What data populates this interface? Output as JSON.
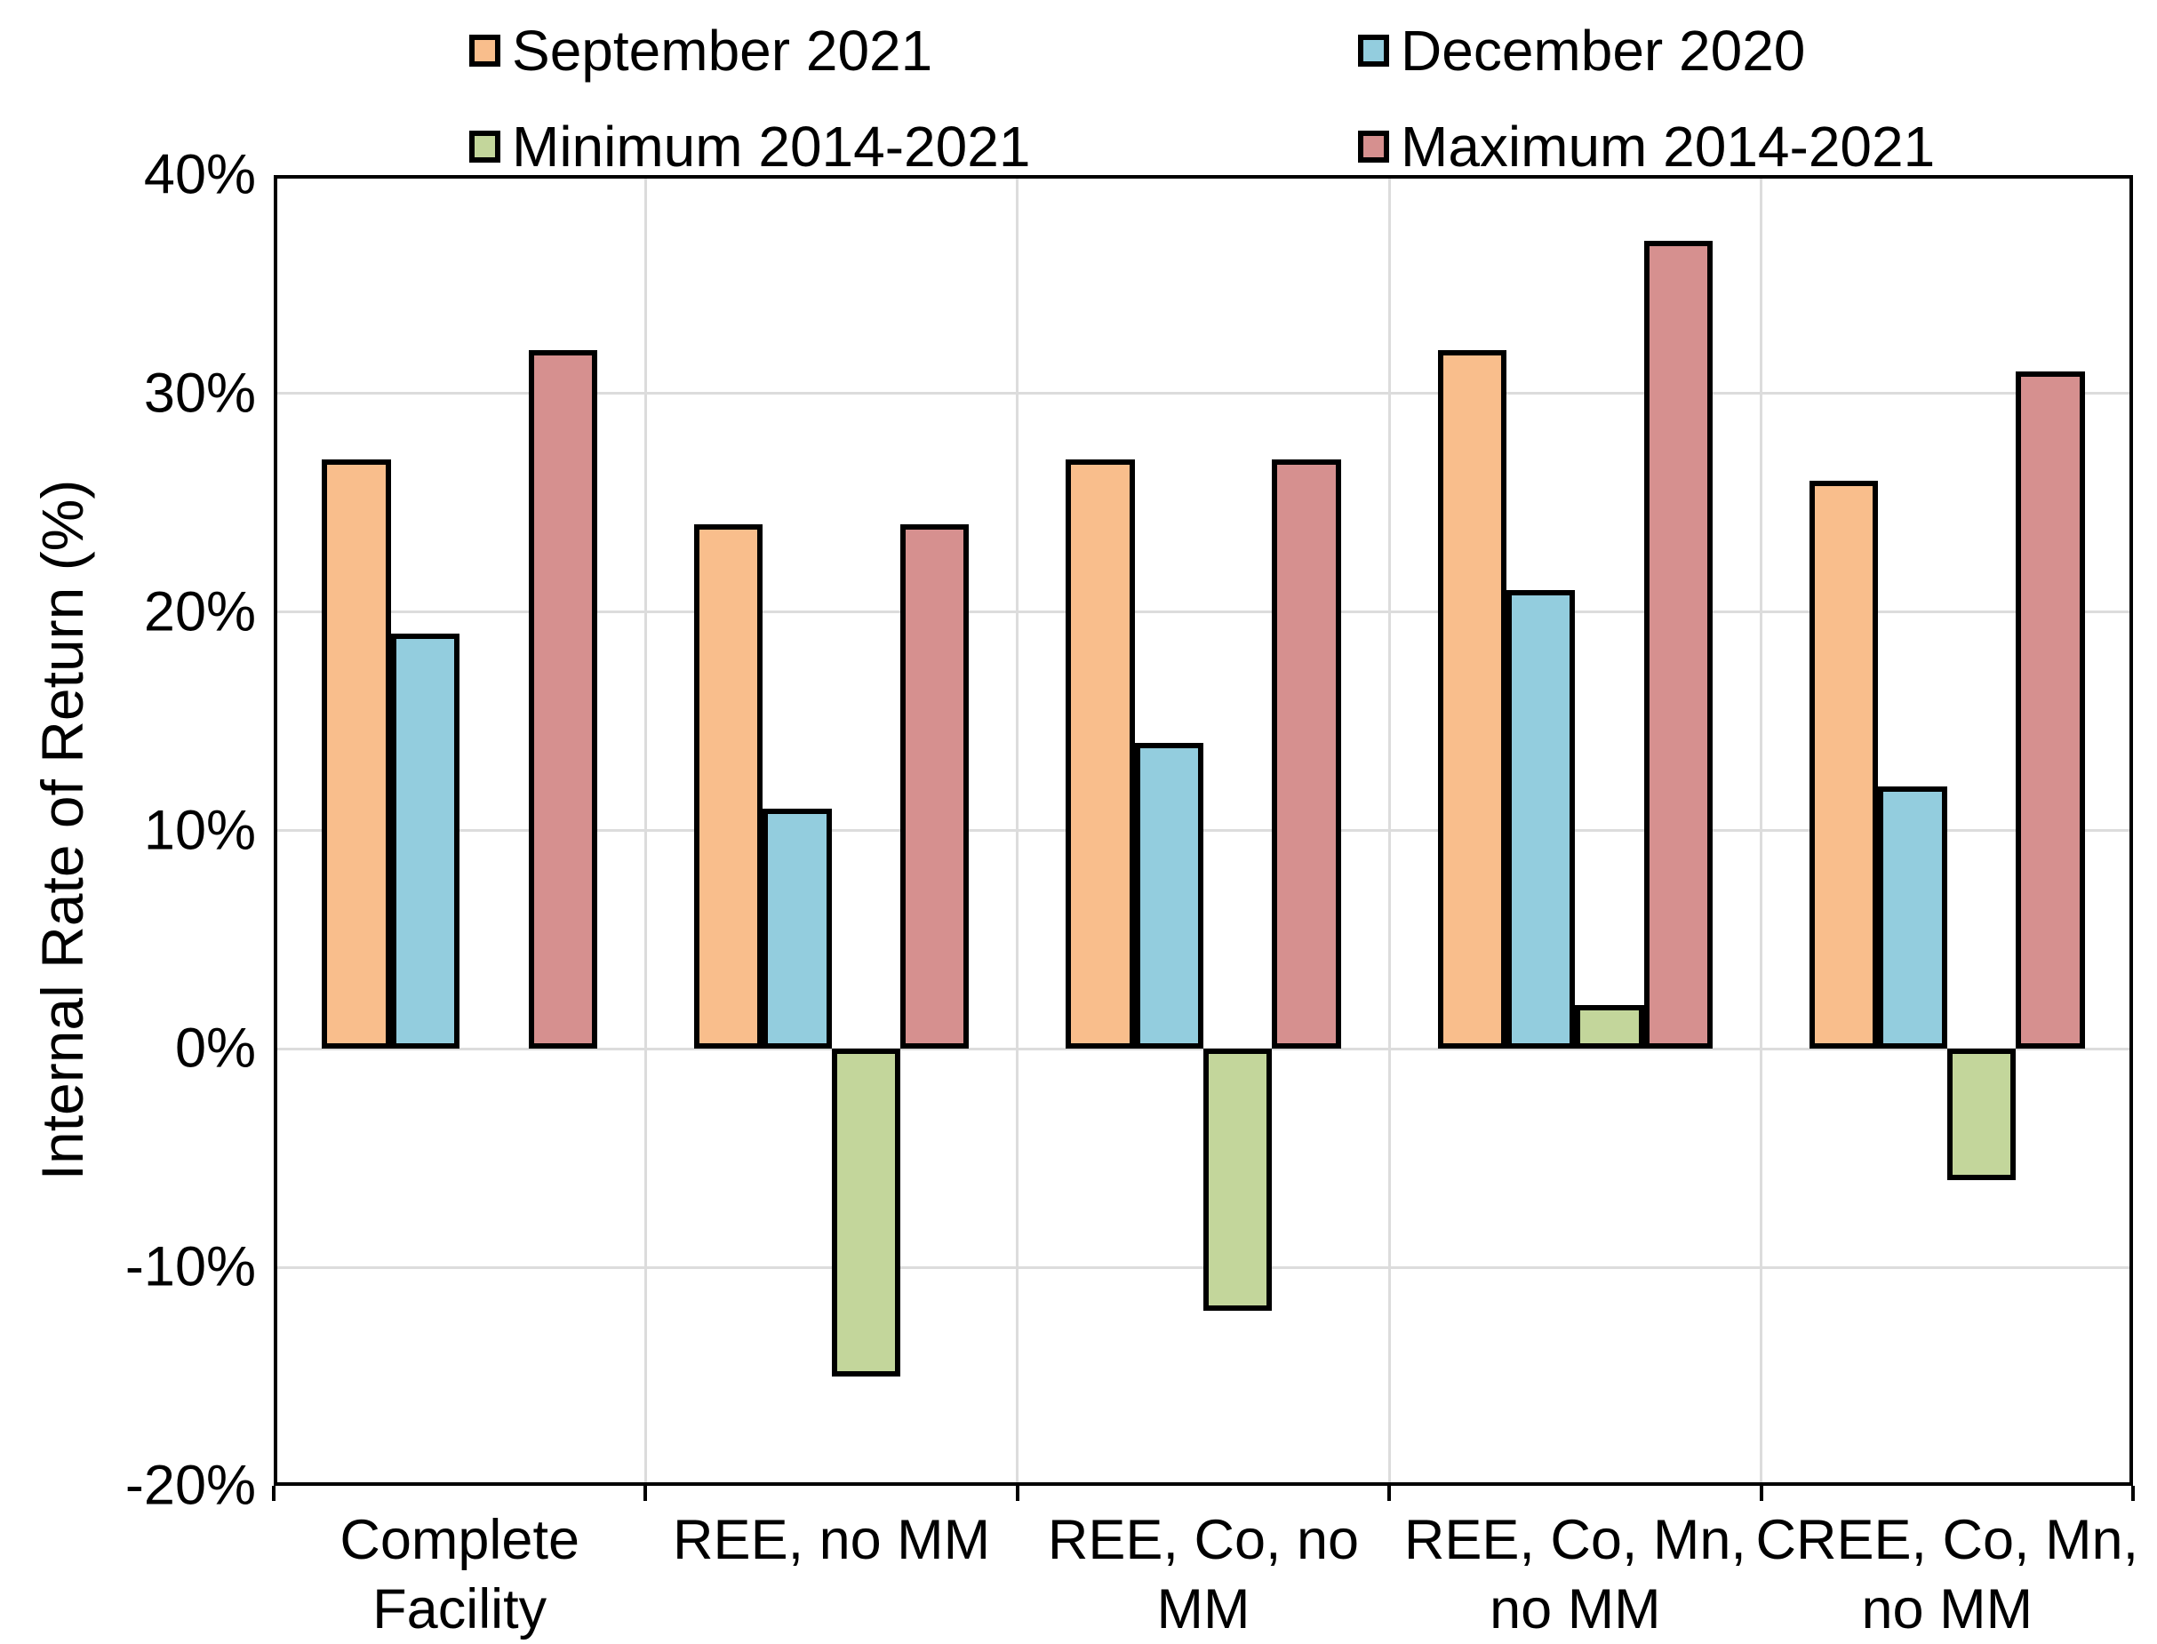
{
  "chart_data": {
    "type": "bar",
    "title": "",
    "xlabel": "",
    "ylabel": "Internal Rate of Return (%)",
    "ylim": [
      -20,
      40
    ],
    "yticks": [
      40,
      30,
      20,
      10,
      0,
      -10,
      -20
    ],
    "ytick_labels": [
      "40%",
      "30%",
      "20%",
      "10%",
      "0%",
      "-10%",
      "-20%"
    ],
    "grid": true,
    "gridline_color": "#DCDCDC",
    "axis_color": "#000000",
    "bar_border_color": "#000000",
    "legend_position": "top",
    "categories": [
      "Complete Facility",
      "REE, no MM",
      "REE, Co, no MM",
      "REE, Co, Mn, no MM",
      "CREE, Co, Mn, no MM"
    ],
    "category_label_lines": [
      [
        "Complete",
        "Facility"
      ],
      [
        "REE, no MM"
      ],
      [
        "REE, Co, no",
        "MM"
      ],
      [
        "REE, Co, Mn,",
        "no MM"
      ],
      [
        "CREE, Co, Mn,",
        "no MM"
      ]
    ],
    "series": [
      {
        "name": "September 2021",
        "color": "#F9BE8C",
        "values": [
          27,
          24,
          27,
          32,
          26
        ]
      },
      {
        "name": "December 2020",
        "color": "#93CDDE",
        "values": [
          19,
          11,
          14,
          21,
          12
        ]
      },
      {
        "name": "Minimum 2014-2021",
        "color": "#C3D69B",
        "values": [
          0,
          -15,
          -12,
          2,
          -6
        ]
      },
      {
        "name": "Maximum 2014-2021",
        "color": "#D6908F",
        "values": [
          32,
          24,
          27,
          37,
          31
        ]
      }
    ],
    "note_zero_values_render_no_bar": true
  }
}
